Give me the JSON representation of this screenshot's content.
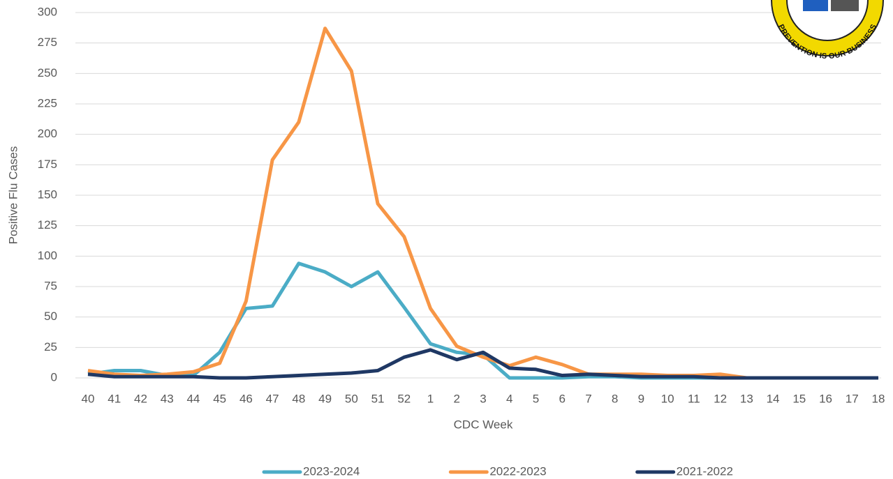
{
  "chart_data": {
    "type": "line",
    "y_label": "Positive Flu Cases",
    "x_label": "CDC Week",
    "categories": [
      "40",
      "41",
      "42",
      "43",
      "44",
      "45",
      "46",
      "47",
      "48",
      "49",
      "50",
      "51",
      "52",
      "1",
      "2",
      "3",
      "4",
      "5",
      "6",
      "7",
      "8",
      "9",
      "10",
      "11",
      "12",
      "13",
      "14",
      "15",
      "16",
      "17",
      "18"
    ],
    "series": [
      {
        "name": "2023-2024",
        "color": "#4bacc6",
        "values": [
          3,
          6,
          6,
          2,
          2,
          21,
          57,
          59,
          94,
          87,
          75,
          87,
          58,
          28,
          21,
          19,
          0,
          0,
          0,
          1,
          1,
          0,
          0,
          0,
          0,
          0,
          0,
          0,
          0,
          0,
          0
        ]
      },
      {
        "name": "2022-2023",
        "color": "#f79646",
        "values": [
          6,
          3,
          2,
          3,
          5,
          12,
          63,
          179,
          210,
          287,
          252,
          143,
          116,
          57,
          26,
          17,
          10,
          17,
          11,
          3,
          3,
          3,
          2,
          2,
          3,
          0,
          0,
          0,
          0,
          0,
          0
        ]
      },
      {
        "name": "2021-2022",
        "color": "#1f3864",
        "values": [
          3,
          1,
          1,
          1,
          1,
          0,
          0,
          1,
          2,
          3,
          4,
          6,
          17,
          23,
          15,
          21,
          8,
          7,
          2,
          3,
          2,
          1,
          1,
          1,
          0,
          0,
          0,
          0,
          0,
          0,
          0
        ]
      }
    ],
    "ylim": [
      0,
      300
    ],
    "yticks": [
      0,
      25,
      50,
      75,
      100,
      125,
      150,
      175,
      200,
      225,
      250,
      275,
      300
    ],
    "grid": true,
    "legend": "bottom"
  },
  "logo_text": "PREVENTION IS OUR BUSINESS"
}
